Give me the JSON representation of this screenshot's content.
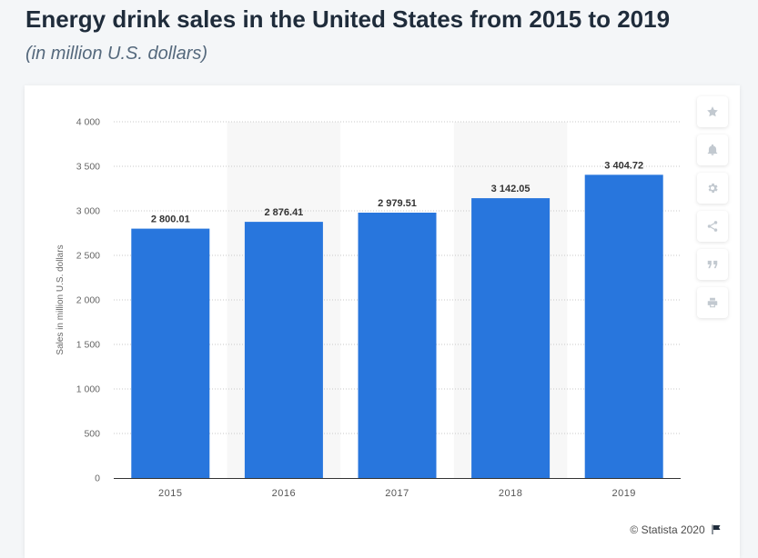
{
  "header": {
    "title": "Energy drink sales in the United States from 2015 to 2019",
    "subtitle": "(in million U.S. dollars)"
  },
  "toolbar": {
    "buttons": [
      {
        "icon": "star-icon"
      },
      {
        "icon": "bell-icon"
      },
      {
        "icon": "gear-icon"
      },
      {
        "icon": "share-icon"
      },
      {
        "icon": "quote-icon"
      },
      {
        "icon": "print-icon"
      }
    ]
  },
  "footer": {
    "credit": "© Statista 2020",
    "flag_icon": "flag-icon"
  },
  "colors": {
    "bar": "#2876dd",
    "alt_band": "#f7f7f7",
    "grid": "#c8c8c8",
    "axis": "#333333"
  },
  "chart_data": {
    "type": "bar",
    "categories": [
      "2015",
      "2016",
      "2017",
      "2018",
      "2019"
    ],
    "values": [
      2800.01,
      2876.41,
      2979.51,
      3142.05,
      3404.72
    ],
    "value_labels": [
      "2 800.01",
      "2 876.41",
      "2 979.51",
      "3 142.05",
      "3 404.72"
    ],
    "ylabel": "Sales in million U.S. dollars",
    "ylim": [
      0,
      4000
    ],
    "yticks": [
      0,
      500,
      1000,
      1500,
      2000,
      2500,
      3000,
      3500,
      4000
    ],
    "ytick_labels": [
      "0",
      "500",
      "1 000",
      "1 500",
      "2 000",
      "2 500",
      "3 000",
      "3 500",
      "4 000"
    ],
    "grid": true,
    "legend": "none"
  }
}
